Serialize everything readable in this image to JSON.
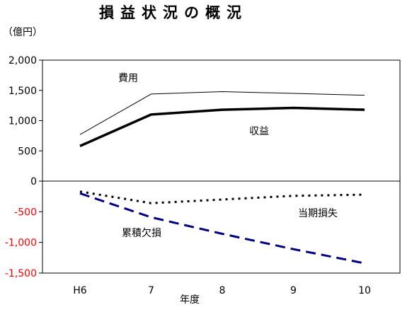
{
  "chart_data": {
    "type": "line",
    "title": "損益状況の概況",
    "ylabel": "（億円）",
    "xlabel": "年度",
    "categories": [
      "H6",
      "7",
      "8",
      "9",
      "10"
    ],
    "ylim": [
      -1500,
      2000
    ],
    "yticks": [
      2000,
      1500,
      1000,
      500,
      0,
      -500,
      -1000,
      -1500
    ],
    "ytick_labels": [
      "2,000",
      "1,500",
      "1,000",
      "500",
      "0",
      "-500",
      "-1,000",
      "-1,500"
    ],
    "grid": false,
    "colors": {
      "negative_tick": "#ff0000",
      "positive_tick": "#000000",
      "deficit_series": "#000080"
    },
    "series": [
      {
        "name": "費用",
        "values": [
          770,
          1440,
          1480,
          1450,
          1420
        ],
        "style": "thin",
        "color": "#000000"
      },
      {
        "name": "収益",
        "values": [
          580,
          1100,
          1180,
          1210,
          1180
        ],
        "style": "thick",
        "color": "#000000"
      },
      {
        "name": "当期損失",
        "values": [
          -170,
          -360,
          -300,
          -240,
          -220
        ],
        "style": "dotted",
        "color": "#000000"
      },
      {
        "name": "累積欠損",
        "values": [
          -200,
          -590,
          -860,
          -1110,
          -1340
        ],
        "style": "dashed",
        "color": "#000080"
      }
    ]
  }
}
